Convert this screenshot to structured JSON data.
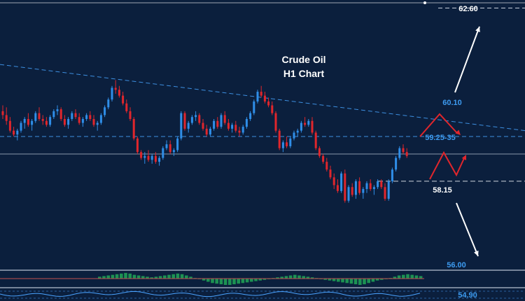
{
  "chart_data": {
    "type": "candlestick",
    "title_line1": "Crude Oil",
    "title_line2": "H1 Chart",
    "price_labels": {
      "top": "62.60",
      "upper_target": "60.10",
      "resistance": "59.25-35",
      "support": "58.15",
      "lower_target": "56.00",
      "indicator": "54.90"
    },
    "levels": {
      "resistance_dashed": 59.3,
      "mid_solid": 58.85,
      "support_dashed": 58.15,
      "top_dashed": 62.6
    },
    "trendline": {
      "from_price": 61.15,
      "to_price": 59.45
    },
    "ylim": [
      55.9,
      62.7
    ],
    "colors": {
      "background": "#0b1f3d",
      "bull": "#2f8ee8",
      "bear": "#e0262c",
      "label_blue": "#3d9bf0",
      "label_white": "#ffffff",
      "arrow_red": "#e0262c",
      "arrow_white": "#ffffff",
      "hist_green": "#1f9e55",
      "hist_red": "#d93a3a",
      "dashed_line": "#3d8fe0"
    },
    "ohlc": [
      [
        59.95,
        60.1,
        59.75,
        59.85
      ],
      [
        59.85,
        60.05,
        59.6,
        59.7
      ],
      [
        59.7,
        59.8,
        59.4,
        59.45
      ],
      [
        59.45,
        59.55,
        59.3,
        59.35
      ],
      [
        59.35,
        59.5,
        59.2,
        59.45
      ],
      [
        59.45,
        59.7,
        59.4,
        59.65
      ],
      [
        59.65,
        59.8,
        59.5,
        59.75
      ],
      [
        59.75,
        59.9,
        59.55,
        59.6
      ],
      [
        59.6,
        59.75,
        59.45,
        59.7
      ],
      [
        59.7,
        59.95,
        59.65,
        59.9
      ],
      [
        59.9,
        60.05,
        59.7,
        59.75
      ],
      [
        59.75,
        59.85,
        59.6,
        59.7
      ],
      [
        59.7,
        59.8,
        59.55,
        59.6
      ],
      [
        59.6,
        59.85,
        59.55,
        59.8
      ],
      [
        59.8,
        60.0,
        59.75,
        59.95
      ],
      [
        59.95,
        60.1,
        59.85,
        60.0
      ],
      [
        60.0,
        60.05,
        59.7,
        59.75
      ],
      [
        59.75,
        59.85,
        59.55,
        59.6
      ],
      [
        59.6,
        59.8,
        59.5,
        59.75
      ],
      [
        59.75,
        59.95,
        59.7,
        59.9
      ],
      [
        59.9,
        60.0,
        59.75,
        59.8
      ],
      [
        59.8,
        59.9,
        59.6,
        59.65
      ],
      [
        59.65,
        59.8,
        59.55,
        59.75
      ],
      [
        59.75,
        59.9,
        59.7,
        59.85
      ],
      [
        59.85,
        59.95,
        59.7,
        59.75
      ],
      [
        59.75,
        59.85,
        59.55,
        59.6
      ],
      [
        59.6,
        59.7,
        59.45,
        59.65
      ],
      [
        59.65,
        59.9,
        59.6,
        59.85
      ],
      [
        59.85,
        60.1,
        59.8,
        60.05
      ],
      [
        60.05,
        60.3,
        60.0,
        60.25
      ],
      [
        60.25,
        60.6,
        60.2,
        60.55
      ],
      [
        60.55,
        60.75,
        60.4,
        60.5
      ],
      [
        60.5,
        60.6,
        60.3,
        60.35
      ],
      [
        60.35,
        60.45,
        60.1,
        60.15
      ],
      [
        60.15,
        60.25,
        59.9,
        59.95
      ],
      [
        59.95,
        60.05,
        59.7,
        59.75
      ],
      [
        59.75,
        59.8,
        59.2,
        59.25
      ],
      [
        59.25,
        59.3,
        58.85,
        58.9
      ],
      [
        58.9,
        58.95,
        58.7,
        58.75
      ],
      [
        58.75,
        58.9,
        58.6,
        58.8
      ],
      [
        58.8,
        58.95,
        58.65,
        58.7
      ],
      [
        58.7,
        58.85,
        58.6,
        58.8
      ],
      [
        58.8,
        58.9,
        58.6,
        58.65
      ],
      [
        58.65,
        58.8,
        58.55,
        58.75
      ],
      [
        58.75,
        59.05,
        58.7,
        59.0
      ],
      [
        59.0,
        59.2,
        58.95,
        59.1
      ],
      [
        59.1,
        59.2,
        58.85,
        58.9
      ],
      [
        58.9,
        59.0,
        58.8,
        58.95
      ],
      [
        58.95,
        59.3,
        58.9,
        59.25
      ],
      [
        59.25,
        59.95,
        59.2,
        59.9
      ],
      [
        59.9,
        59.95,
        59.45,
        59.5
      ],
      [
        59.5,
        59.7,
        59.4,
        59.65
      ],
      [
        59.65,
        59.85,
        59.6,
        59.8
      ],
      [
        59.8,
        59.95,
        59.7,
        59.85
      ],
      [
        59.85,
        59.9,
        59.6,
        59.65
      ],
      [
        59.65,
        59.75,
        59.45,
        59.5
      ],
      [
        59.5,
        59.6,
        59.3,
        59.35
      ],
      [
        59.35,
        59.55,
        59.3,
        59.5
      ],
      [
        59.5,
        59.75,
        59.45,
        59.7
      ],
      [
        59.7,
        59.8,
        59.5,
        59.55
      ],
      [
        59.55,
        59.9,
        59.5,
        59.85
      ],
      [
        59.85,
        59.95,
        59.6,
        59.65
      ],
      [
        59.65,
        59.75,
        59.45,
        59.5
      ],
      [
        59.5,
        59.65,
        59.4,
        59.6
      ],
      [
        59.6,
        59.7,
        59.4,
        59.45
      ],
      [
        59.45,
        59.55,
        59.3,
        59.4
      ],
      [
        59.4,
        59.6,
        59.35,
        59.55
      ],
      [
        59.55,
        59.8,
        59.5,
        59.75
      ],
      [
        59.75,
        59.95,
        59.7,
        59.9
      ],
      [
        59.9,
        60.25,
        59.85,
        60.2
      ],
      [
        60.2,
        60.5,
        60.15,
        60.45
      ],
      [
        60.45,
        60.6,
        60.3,
        60.35
      ],
      [
        60.35,
        60.45,
        60.15,
        60.2
      ],
      [
        60.2,
        60.3,
        60.05,
        60.1
      ],
      [
        60.1,
        60.2,
        59.85,
        59.9
      ],
      [
        59.9,
        59.95,
        59.4,
        59.45
      ],
      [
        59.45,
        59.5,
        58.95,
        59.0
      ],
      [
        59.0,
        59.2,
        58.9,
        59.15
      ],
      [
        59.15,
        59.3,
        59.0,
        59.05
      ],
      [
        59.05,
        59.3,
        59.0,
        59.25
      ],
      [
        59.25,
        59.45,
        59.2,
        59.4
      ],
      [
        59.4,
        59.5,
        59.3,
        59.45
      ],
      [
        59.45,
        59.7,
        59.4,
        59.65
      ],
      [
        59.65,
        59.8,
        59.55,
        59.6
      ],
      [
        59.6,
        59.75,
        59.55,
        59.7
      ],
      [
        59.7,
        59.8,
        59.35,
        59.4
      ],
      [
        59.4,
        59.45,
        58.95,
        59.0
      ],
      [
        59.0,
        59.05,
        58.75,
        58.8
      ],
      [
        58.8,
        58.85,
        58.6,
        58.65
      ],
      [
        58.65,
        58.75,
        58.4,
        58.45
      ],
      [
        58.45,
        58.55,
        58.2,
        58.25
      ],
      [
        58.25,
        58.35,
        57.95,
        58.05
      ],
      [
        58.05,
        58.2,
        57.85,
        57.9
      ],
      [
        57.9,
        58.4,
        57.85,
        58.35
      ],
      [
        58.35,
        58.45,
        57.6,
        57.65
      ],
      [
        57.65,
        58.05,
        57.6,
        58.0
      ],
      [
        58.0,
        58.1,
        57.75,
        57.8
      ],
      [
        57.8,
        58.2,
        57.7,
        58.15
      ],
      [
        58.15,
        58.25,
        57.8,
        57.85
      ],
      [
        57.85,
        58.0,
        57.7,
        57.95
      ],
      [
        57.95,
        58.15,
        57.85,
        58.1
      ],
      [
        58.1,
        58.2,
        57.9,
        57.95
      ],
      [
        57.95,
        58.05,
        57.8,
        58.0
      ],
      [
        58.0,
        58.2,
        57.95,
        58.15
      ],
      [
        58.15,
        58.2,
        57.95,
        58.0
      ],
      [
        58.0,
        58.1,
        57.65,
        57.7
      ],
      [
        57.7,
        58.2,
        57.65,
        58.15
      ],
      [
        58.15,
        58.5,
        58.1,
        58.45
      ],
      [
        58.45,
        58.8,
        58.4,
        58.75
      ],
      [
        58.75,
        59.05,
        58.7,
        59.0
      ],
      [
        59.0,
        59.1,
        58.85,
        58.9
      ],
      [
        58.9,
        59.0,
        58.75,
        58.8
      ]
    ],
    "macd_hist": [
      0.3,
      0.4,
      0.5,
      0.6,
      0.7,
      0.8,
      0.9,
      0.8,
      0.6,
      0.5,
      0.4,
      0.3,
      0.2,
      0.3,
      0.4,
      0.5,
      0.6,
      0.7,
      0.8,
      0.7,
      0.5,
      0.3,
      0.1,
      -0.1,
      -0.3,
      -0.5,
      -0.7,
      -0.8,
      -0.9,
      -1.0,
      -1.0,
      -0.9,
      -0.8,
      -0.7,
      -0.6,
      -0.5,
      -0.4,
      -0.3,
      -0.2,
      -0.1,
      0.1,
      0.2,
      0.3,
      0.4,
      0.5,
      0.6,
      0.5,
      0.4,
      0.3,
      0.2,
      0.1,
      -0.1,
      -0.2,
      -0.3,
      -0.4,
      -0.5,
      -0.6,
      -0.7,
      -0.8,
      -0.9,
      -1.0,
      -0.9,
      -0.7,
      -0.5,
      -0.3,
      -0.2,
      -0.1,
      0.1,
      0.3,
      0.5,
      0.6,
      0.7,
      0.6,
      0.5,
      0.4
    ]
  }
}
